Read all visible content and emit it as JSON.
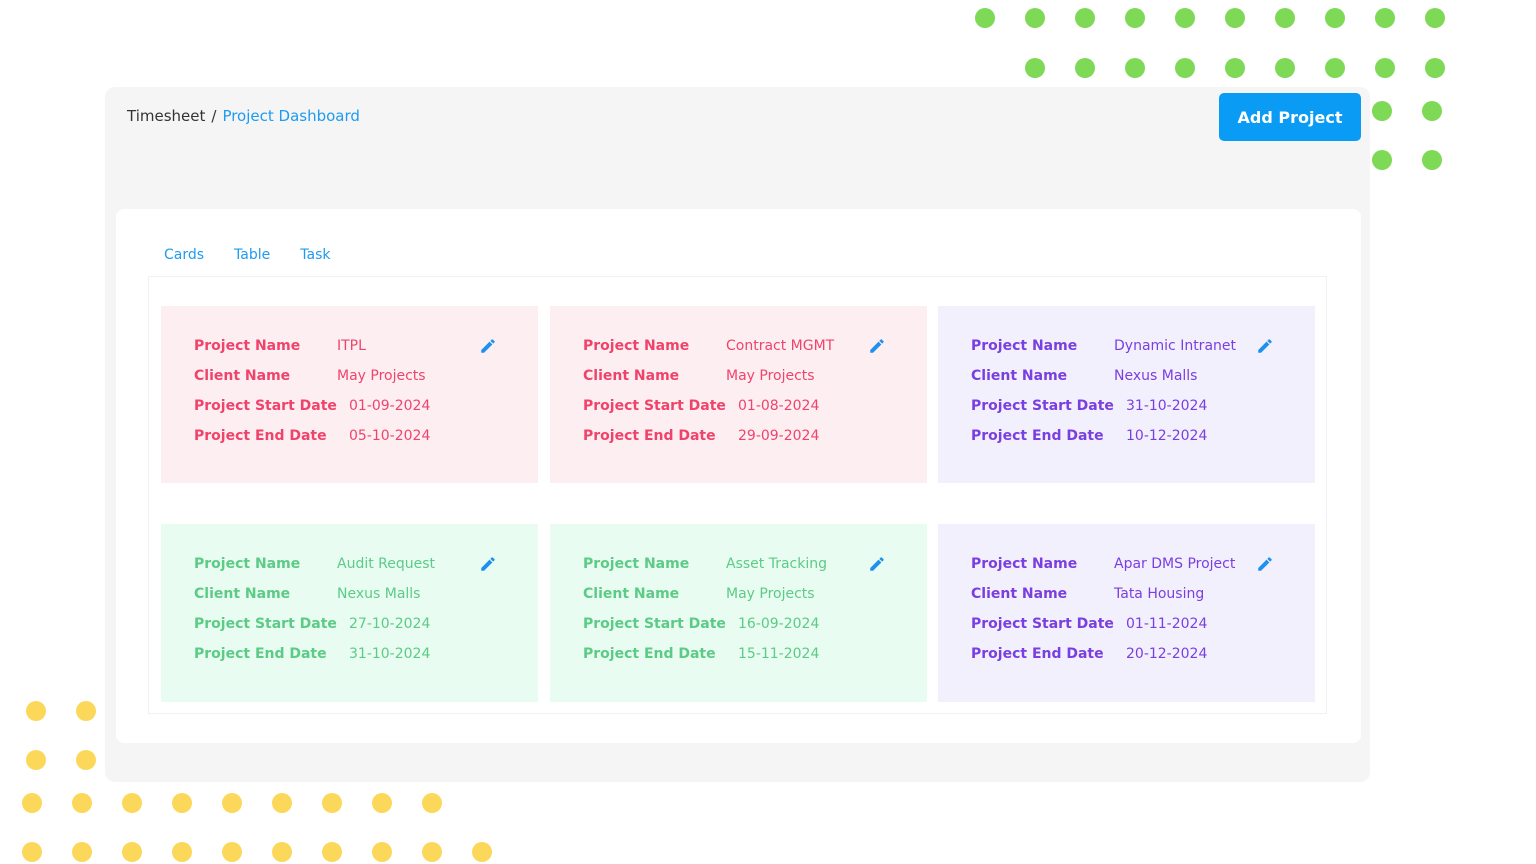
{
  "breadcrumb": {
    "root": "Timesheet",
    "separator": "/",
    "current": "Project Dashboard"
  },
  "add_project_label": "Add Project",
  "tabs": [
    {
      "label": "Cards"
    },
    {
      "label": "Table"
    },
    {
      "label": "Task"
    }
  ],
  "field_labels": {
    "project_name": "Project Name",
    "client_name": "Client Name",
    "start_date": "Project Start Date",
    "end_date": "Project End Date"
  },
  "colors": {
    "pink": "#f0436b",
    "green": "#5ccb85",
    "purple": "#7a3fe0",
    "accent": "#0a9bf5"
  },
  "cards": [
    {
      "theme": "pink",
      "project_name": "ITPL",
      "client_name": "May Projects",
      "start_date": "01-09-2024",
      "end_date": "05-10-2024"
    },
    {
      "theme": "pink",
      "project_name": "Contract MGMT",
      "client_name": "May Projects",
      "start_date": "01-08-2024",
      "end_date": "29-09-2024"
    },
    {
      "theme": "purple",
      "project_name": "Dynamic Intranet",
      "client_name": "Nexus Malls",
      "start_date": "31-10-2024",
      "end_date": "10-12-2024"
    },
    {
      "theme": "green",
      "project_name": "Audit Request",
      "client_name": "Nexus Malls",
      "start_date": "27-10-2024",
      "end_date": "31-10-2024"
    },
    {
      "theme": "green",
      "project_name": "Asset Tracking",
      "client_name": "May Projects",
      "start_date": "16-09-2024",
      "end_date": "15-11-2024"
    },
    {
      "theme": "purple",
      "project_name": "Apar DMS Project",
      "client_name": "Tata Housing",
      "start_date": "01-11-2024",
      "end_date": "20-12-2024"
    }
  ]
}
